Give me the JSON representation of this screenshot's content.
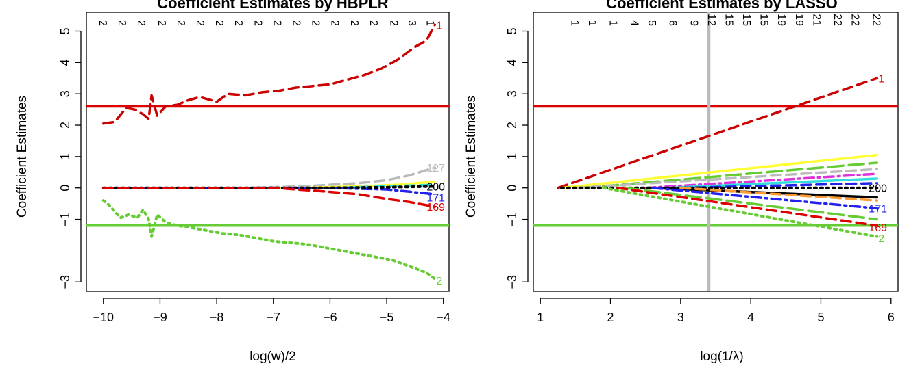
{
  "chart_data": [
    {
      "type": "line",
      "title": "Coefficient Estimates by HBPLR",
      "xlabel": "log(w)/2",
      "ylabel": "Coefficient Estimates",
      "xlim": [
        -10.3,
        -3.9
      ],
      "ylim": [
        -3.3,
        5.6
      ],
      "xticks": [
        -10,
        -9,
        -8,
        -7,
        -6,
        -5,
        -4
      ],
      "xtick_labels": [
        "−10",
        "−9",
        "−8",
        "−7",
        "−6",
        "−5",
        "−4"
      ],
      "yticks": [
        -3,
        -1,
        0,
        1,
        2,
        3,
        4,
        5
      ],
      "ytick_labels": [
        "−3",
        "−1",
        "0",
        "1",
        "2",
        "3",
        "4",
        "5"
      ],
      "top_axis": {
        "x": [
          -10,
          -9.66,
          -9.32,
          -8.96,
          -8.62,
          -8.28,
          -7.94,
          -7.6,
          -7.26,
          -6.92,
          -6.58,
          -6.24,
          -5.9,
          -5.56,
          -5.22,
          -4.86,
          -4.54,
          -4.22
        ],
        "labels": [
          "2",
          "2",
          "2",
          "2",
          "2",
          "2",
          "2",
          "2",
          "2",
          "2",
          "2",
          "2",
          "2",
          "2",
          "2",
          "2",
          "3",
          "1"
        ]
      },
      "hlines": [
        {
          "y": 2.6,
          "color": "#dd0000"
        },
        {
          "y": -1.2,
          "color": "#66cc33"
        }
      ],
      "series": [
        {
          "name": "1",
          "color": "#cc0000",
          "dash": "dash",
          "x": [
            -10,
            -9.8,
            -9.6,
            -9.45,
            -9.3,
            -9.2,
            -9.15,
            -9.05,
            -8.9,
            -8.7,
            -8.5,
            -8.3,
            -8.0,
            -7.8,
            -7.5,
            -7.2,
            -6.9,
            -6.6,
            -6.3,
            -6.0,
            -5.7,
            -5.4,
            -5.1,
            -4.8,
            -4.5,
            -4.3,
            -4.15
          ],
          "y": [
            2.05,
            2.1,
            2.55,
            2.5,
            2.35,
            2.2,
            2.95,
            2.3,
            2.6,
            2.65,
            2.8,
            2.9,
            2.75,
            3.0,
            2.95,
            3.05,
            3.1,
            3.2,
            3.25,
            3.3,
            3.45,
            3.6,
            3.8,
            4.1,
            4.5,
            4.7,
            5.2
          ]
        },
        {
          "name": "2",
          "color": "#66cc33",
          "dash": "dot",
          "x": [
            -10,
            -9.9,
            -9.8,
            -9.7,
            -9.55,
            -9.4,
            -9.3,
            -9.2,
            -9.15,
            -9.05,
            -8.9,
            -8.7,
            -8.5,
            -8.2,
            -7.9,
            -7.6,
            -7.3,
            -7.0,
            -6.7,
            -6.4,
            -6.1,
            -5.8,
            -5.5,
            -5.2,
            -4.9,
            -4.6,
            -4.3,
            -4.15
          ],
          "y": [
            -0.4,
            -0.55,
            -0.75,
            -0.95,
            -0.85,
            -0.95,
            -0.7,
            -1.0,
            -1.55,
            -0.85,
            -1.1,
            -1.2,
            -1.25,
            -1.35,
            -1.45,
            -1.5,
            -1.6,
            -1.7,
            -1.75,
            -1.8,
            -1.9,
            -2.0,
            -2.1,
            -2.2,
            -2.3,
            -2.5,
            -2.7,
            -2.9
          ]
        },
        {
          "name": "127",
          "color": "#bbbbbb",
          "dash": "dash",
          "x": [
            -10,
            -7.5,
            -6.5,
            -5.5,
            -5.0,
            -4.6,
            -4.15
          ],
          "y": [
            0,
            0.0,
            0.05,
            0.15,
            0.25,
            0.4,
            0.65
          ]
        },
        {
          "name": "yellow",
          "color": "#ffff33",
          "dash": "solid",
          "x": [
            -10,
            -6.5,
            -5.5,
            -4.8,
            -4.15
          ],
          "y": [
            0,
            0.0,
            0.05,
            0.1,
            0.2
          ]
        },
        {
          "name": "cyan",
          "color": "#33dddd",
          "dash": "dash",
          "x": [
            -10,
            -6.0,
            -5.0,
            -4.15
          ],
          "y": [
            0,
            0.0,
            0.05,
            0.1
          ]
        },
        {
          "name": "171",
          "color": "#2222ee",
          "dash": "dashdot",
          "x": [
            -10,
            -6.0,
            -5.0,
            -4.15
          ],
          "y": [
            0,
            0.0,
            -0.05,
            -0.2
          ]
        },
        {
          "name": "200",
          "color": "#000000",
          "dash": "dot",
          "x": [
            -10,
            -7.0,
            -6.0,
            -5.0,
            -4.15
          ],
          "y": [
            0,
            0.0,
            0.0,
            0.02,
            0.05
          ]
        },
        {
          "name": "169",
          "color": "#dd0000",
          "dash": "dash",
          "x": [
            -10,
            -7.0,
            -6.2,
            -5.5,
            -5.0,
            -4.6,
            -4.15
          ],
          "y": [
            0,
            0.0,
            -0.1,
            -0.2,
            -0.35,
            -0.45,
            -0.6
          ]
        }
      ],
      "end_labels": [
        {
          "text": "1",
          "x": -4.15,
          "y": 5.2,
          "color": "#cc0000"
        },
        {
          "text": "127",
          "x": -4.15,
          "y": 0.65,
          "color": "#bbbbbb"
        },
        {
          "text": "200",
          "x": -4.15,
          "y": 0.05,
          "color": "#000000"
        },
        {
          "text": "171",
          "x": -4.15,
          "y": -0.3,
          "color": "#2222ee"
        },
        {
          "text": "169",
          "x": -4.15,
          "y": -0.6,
          "color": "#dd0000"
        },
        {
          "text": "2",
          "x": -4.15,
          "y": -2.95,
          "color": "#66cc33"
        }
      ],
      "grid": false
    },
    {
      "type": "line",
      "title": "Coefficient Estimates by LASSO",
      "xlabel": "log(1/λ)",
      "ylabel": "Coefficient Estimates",
      "xlim": [
        0.9,
        6.1
      ],
      "ylim": [
        -3.3,
        5.6
      ],
      "xticks": [
        1,
        2,
        3,
        4,
        5,
        6
      ],
      "xtick_labels": [
        "1",
        "2",
        "3",
        "4",
        "5",
        "6"
      ],
      "yticks": [
        -3,
        -1,
        0,
        1,
        2,
        3,
        4,
        5
      ],
      "ytick_labels": [
        "−3",
        "−1",
        "0",
        "1",
        "2",
        "3",
        "4",
        "5"
      ],
      "top_axis": {
        "x": [
          1.5,
          1.75,
          2.05,
          2.35,
          2.6,
          2.9,
          3.2,
          3.45,
          3.7,
          3.95,
          4.2,
          4.45,
          4.7,
          4.95,
          5.25,
          5.5,
          5.8
        ],
        "labels": [
          "1",
          "1",
          "1",
          "4",
          "5",
          "6",
          "9",
          "12",
          "15",
          "15",
          "15",
          "19",
          "19",
          "21",
          "22",
          "22",
          "22"
        ]
      },
      "hlines": [
        {
          "y": 2.6,
          "color": "#dd0000"
        },
        {
          "y": -1.2,
          "color": "#66cc33"
        }
      ],
      "vline": {
        "x": 3.4,
        "color": "#bbbbbb"
      },
      "series": [
        {
          "name": "1",
          "color": "#cc0000",
          "dash": "dash",
          "x": [
            1.25,
            5.8
          ],
          "y": [
            0,
            3.5
          ]
        },
        {
          "name": "yellow",
          "color": "#ffff33",
          "dash": "solid",
          "x": [
            1.3,
            5.8
          ],
          "y": [
            0,
            1.05
          ]
        },
        {
          "name": "green-a",
          "color": "#66cc33",
          "dash": "longdash",
          "x": [
            1.6,
            5.8
          ],
          "y": [
            0,
            0.8
          ]
        },
        {
          "name": "grey-a",
          "color": "#bbbbbb",
          "dash": "dash",
          "x": [
            1.5,
            5.8
          ],
          "y": [
            0,
            0.6
          ]
        },
        {
          "name": "magenta",
          "color": "#dd33dd",
          "dash": "dashdot",
          "x": [
            2.5,
            5.8
          ],
          "y": [
            0,
            0.45
          ]
        },
        {
          "name": "cyan",
          "color": "#33dddd",
          "dash": "solid",
          "x": [
            2.8,
            5.8
          ],
          "y": [
            0,
            0.3
          ]
        },
        {
          "name": "blue-a",
          "color": "#2222ee",
          "dash": "dash",
          "x": [
            3.0,
            5.8
          ],
          "y": [
            0,
            0.15
          ]
        },
        {
          "name": "200",
          "color": "#000000",
          "dash": "dot",
          "x": [
            1.3,
            5.8
          ],
          "y": [
            0,
            0.0
          ]
        },
        {
          "name": "black-b",
          "color": "#000000",
          "dash": "solid",
          "x": [
            2.6,
            5.8
          ],
          "y": [
            0,
            -0.3
          ]
        },
        {
          "name": "orange",
          "color": "#ff9933",
          "dash": "dash",
          "x": [
            3.0,
            5.8
          ],
          "y": [
            0,
            -0.4
          ]
        },
        {
          "name": "171",
          "color": "#2222ee",
          "dash": "dashdot",
          "x": [
            2.6,
            5.8
          ],
          "y": [
            0,
            -0.65
          ]
        },
        {
          "name": "green-b",
          "color": "#66cc33",
          "dash": "longdash",
          "x": [
            2.2,
            5.8
          ],
          "y": [
            0,
            -1.0
          ]
        },
        {
          "name": "169",
          "color": "#dd0000",
          "dash": "dash",
          "x": [
            2.1,
            5.8
          ],
          "y": [
            0,
            -1.2
          ]
        },
        {
          "name": "2",
          "color": "#66cc33",
          "dash": "dot",
          "x": [
            1.9,
            5.8
          ],
          "y": [
            0,
            -1.55
          ]
        }
      ],
      "end_labels": [
        {
          "text": "1",
          "x": 5.8,
          "y": 3.5,
          "color": "#cc0000"
        },
        {
          "text": "200",
          "x": 5.8,
          "y": 0.0,
          "color": "#000000"
        },
        {
          "text": "171",
          "x": 5.8,
          "y": -0.65,
          "color": "#2222ee"
        },
        {
          "text": "169",
          "x": 5.8,
          "y": -1.25,
          "color": "#dd0000"
        },
        {
          "text": "2",
          "x": 5.8,
          "y": -1.6,
          "color": "#66cc33"
        }
      ],
      "grid": false
    }
  ]
}
